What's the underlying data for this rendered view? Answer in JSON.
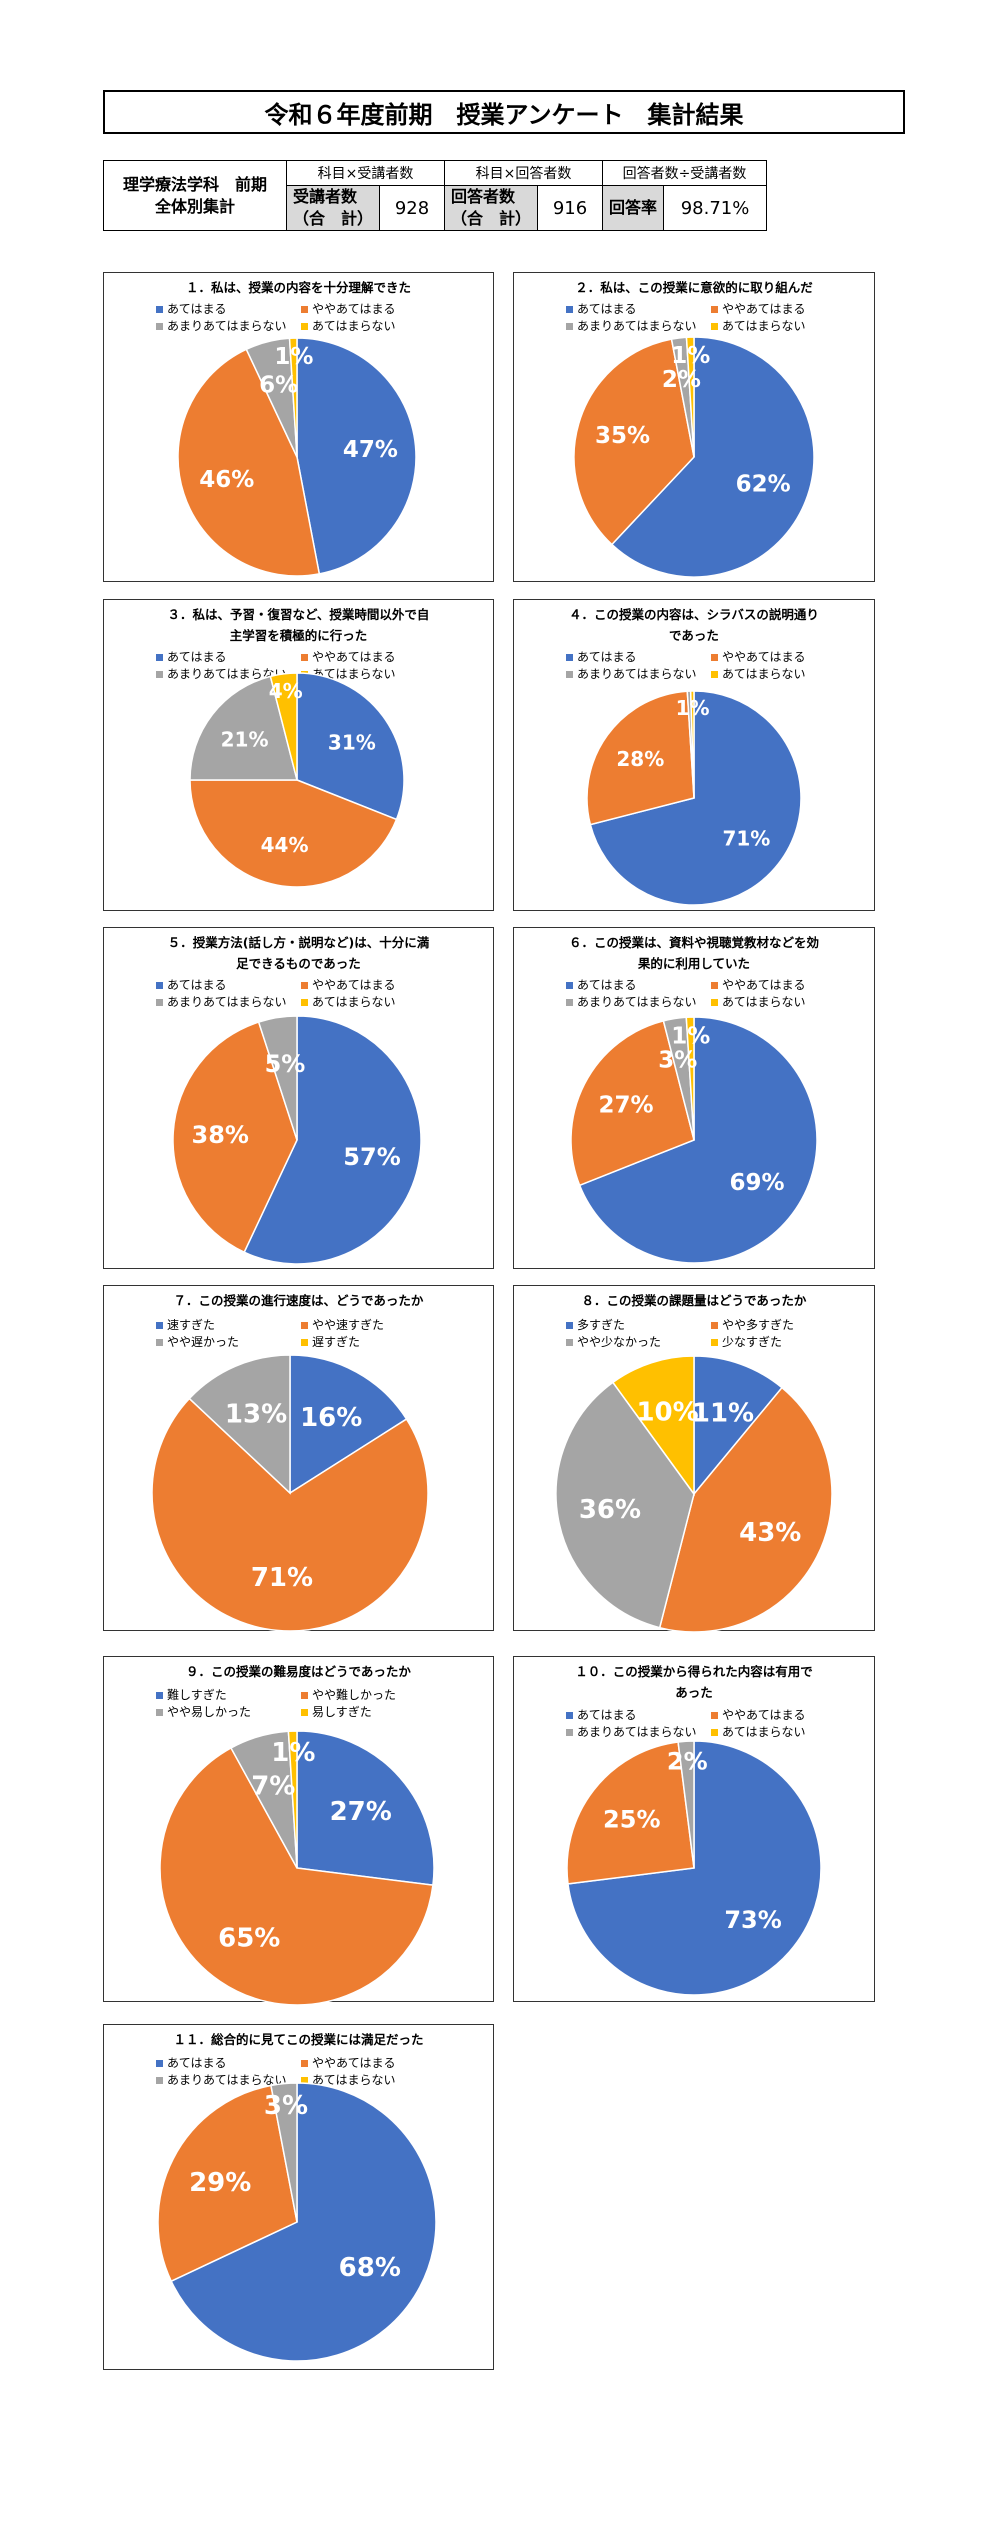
{
  "header": {
    "title": "令和６年度前期　授業アンケート　集計結果"
  },
  "summary": {
    "label_line1": "理学療法学科　前期",
    "label_line2": "全体別集計",
    "head1": "科目×受講者数",
    "head2": "科目×回答者数",
    "head3": "回答者数÷受講者数",
    "sub1_line1": "受講者数",
    "sub1_line2": "（合　計）",
    "val1": "928",
    "sub2_line1": "回答者数",
    "sub2_line2": "（合　計）",
    "val2": "916",
    "sub3": "回答率",
    "val3": "98.71%"
  },
  "colors": {
    "blue": "#4472c4",
    "orange": "#ed7d31",
    "gray": "#a5a5a5",
    "yellow": "#ffc000"
  },
  "chart_data": [
    {
      "type": "pie",
      "title": "１．私は、授業の内容を十分理解できた",
      "categories": [
        "あてはまる",
        "ややあてはまる",
        "あまりあてはまらない",
        "あてはまらない"
      ],
      "values": [
        47,
        46,
        6,
        1
      ],
      "data_labels": [
        "47%",
        "46%",
        "6%",
        "1%"
      ]
    },
    {
      "type": "pie",
      "title": "２．私は、この授業に意欲的に取り組んだ",
      "categories": [
        "あてはまる",
        "ややあてはまる",
        "あまりあてはまらない",
        "あてはまらない"
      ],
      "values": [
        62,
        35,
        2,
        1
      ],
      "data_labels": [
        "62%",
        "35%",
        "2%",
        "1%"
      ]
    },
    {
      "type": "pie",
      "title": "３．私は、予習・復習など、授業時間以外で自\n主学習を積極的に行った",
      "categories": [
        "あてはまる",
        "ややあてはまる",
        "あまりあてはまらない",
        "あてはまらない"
      ],
      "values": [
        31,
        44,
        21,
        4
      ],
      "data_labels": [
        "31%",
        "44%",
        "21%",
        "4%"
      ]
    },
    {
      "type": "pie",
      "title": "４．この授業の内容は、シラバスの説明通り\nであった",
      "categories": [
        "あてはまる",
        "ややあてはまる",
        "あまりあてはまらない",
        "あてはまらない"
      ],
      "values": [
        71,
        28,
        0.5,
        0.5
      ],
      "data_labels": [
        "71%",
        "28%",
        "",
        "1%"
      ]
    },
    {
      "type": "pie",
      "title": "５．授業方法(話し方・説明など)は、十分に満\n足できるものであった",
      "categories": [
        "あてはまる",
        "ややあてはまる",
        "あまりあてはまらない",
        "あてはまらない"
      ],
      "values": [
        57,
        38,
        5,
        0
      ],
      "data_labels": [
        "57%",
        "38%",
        "5%",
        ""
      ]
    },
    {
      "type": "pie",
      "title": "６．この授業は、資料や視聴覚教材などを効\n果的に利用していた",
      "categories": [
        "あてはまる",
        "ややあてはまる",
        "あまりあてはまらない",
        "あてはまらない"
      ],
      "values": [
        69,
        27,
        3,
        1
      ],
      "data_labels": [
        "69%",
        "27%",
        "3%",
        "1%"
      ]
    },
    {
      "type": "pie",
      "title": "７．この授業の進行速度は、どうであったか",
      "categories": [
        "速すぎた",
        "やや速すぎた",
        "やや遅かった",
        "遅すぎた"
      ],
      "values": [
        16,
        71,
        13,
        0
      ],
      "data_labels": [
        "16%",
        "71%",
        "13%",
        ""
      ]
    },
    {
      "type": "pie",
      "title": "８．この授業の課題量はどうであったか",
      "categories": [
        "多すぎた",
        "やや多すぎた",
        "やや少なかった",
        "少なすぎた"
      ],
      "values": [
        11,
        43,
        36,
        10
      ],
      "data_labels": [
        "11%",
        "43%",
        "36%",
        "10%"
      ]
    },
    {
      "type": "pie",
      "title": "９．この授業の難易度はどうであったか",
      "categories": [
        "難しすぎた",
        "やや難しかった",
        "やや易しかった",
        "易しすぎた"
      ],
      "values": [
        27,
        65,
        7,
        1
      ],
      "data_labels": [
        "27%",
        "65%",
        "7%",
        "1%"
      ]
    },
    {
      "type": "pie",
      "title": "１０．この授業から得られた内容は有用で\nあった",
      "categories": [
        "あてはまる",
        "ややあてはまる",
        "あまりあてはまらない",
        "あてはまらない"
      ],
      "values": [
        73,
        25,
        2,
        0
      ],
      "data_labels": [
        "73%",
        "25%",
        "2%",
        ""
      ]
    },
    {
      "type": "pie",
      "title": "１１．総合的に見てこの授業には満足だった",
      "categories": [
        "あてはまる",
        "ややあてはまる",
        "あまりあてはまらない",
        "あてはまらない"
      ],
      "values": [
        68,
        29,
        3,
        0
      ],
      "data_labels": [
        "68%",
        "29%",
        "3%",
        ""
      ]
    }
  ]
}
